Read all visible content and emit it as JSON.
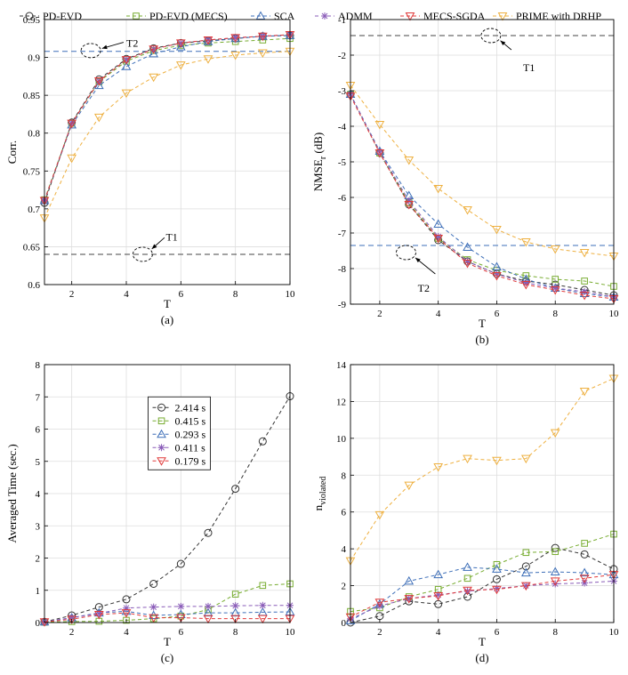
{
  "legend": {
    "entries": [
      {
        "name": "PD-EVD",
        "color": "#333333",
        "marker": "circle"
      },
      {
        "name": "PD-EVD (MECS)",
        "color": "#77ac30",
        "marker": "square"
      },
      {
        "name": "SCA",
        "color": "#3e6fb8",
        "marker": "triangle-up"
      },
      {
        "name": "ADMM",
        "color": "#8a5cb8",
        "marker": "star"
      },
      {
        "name": "MECS-SGDA",
        "color": "#e03a3a",
        "marker": "triangle-down"
      },
      {
        "name": "PRIME with DRHP",
        "color": "#eeb040",
        "marker": "triangle-down"
      }
    ]
  },
  "chart_data": [
    {
      "id": "a",
      "type": "line",
      "caption": "(a)",
      "xlabel": "T",
      "ylabel": "Corr.",
      "xlim": [
        1,
        10
      ],
      "ylim": [
        0.6,
        0.95
      ],
      "xticks": [
        2,
        4,
        6,
        8,
        10
      ],
      "yticks": [
        0.6,
        0.65,
        0.7,
        0.75,
        0.8,
        0.85,
        0.9,
        0.95
      ],
      "ytick_labels": [
        "0.6",
        "0.65",
        "0.7",
        "0.75",
        "0.8",
        "0.85",
        "0.9",
        "0.95"
      ],
      "x": [
        1,
        2,
        3,
        4,
        5,
        6,
        7,
        8,
        9,
        10
      ],
      "series": [
        {
          "name": "PD-EVD",
          "values": [
            0.708,
            0.814,
            0.871,
            0.898,
            0.912,
            0.919,
            0.922,
            0.925,
            0.928,
            0.929
          ]
        },
        {
          "name": "PD-EVD (MECS)",
          "values": [
            0.712,
            0.813,
            0.868,
            0.895,
            0.909,
            0.916,
            0.919,
            0.921,
            0.923,
            0.925
          ]
        },
        {
          "name": "SCA",
          "values": [
            0.711,
            0.811,
            0.863,
            0.888,
            0.905,
            0.914,
            0.921,
            0.925,
            0.928,
            0.929
          ]
        },
        {
          "name": "ADMM",
          "values": [
            0.711,
            0.813,
            0.869,
            0.897,
            0.911,
            0.919,
            0.923,
            0.926,
            0.928,
            0.93
          ]
        },
        {
          "name": "MECS-SGDA",
          "values": [
            0.711,
            0.813,
            0.869,
            0.897,
            0.911,
            0.919,
            0.923,
            0.926,
            0.928,
            0.93
          ]
        },
        {
          "name": "PRIME with DRHP",
          "values": [
            0.688,
            0.767,
            0.821,
            0.853,
            0.874,
            0.89,
            0.898,
            0.903,
            0.906,
            0.908
          ]
        }
      ],
      "hlines": [
        {
          "label": "T1",
          "value": 0.64,
          "color": "#444444"
        },
        {
          "label": "T2",
          "value": 0.908,
          "color": "#3e6fb8"
        }
      ],
      "annotations": [
        {
          "text": "T2",
          "ellipse": [
            2.7,
            0.909
          ],
          "arrow_from": [
            3.9,
            0.92
          ],
          "text_at": [
            4.0,
            0.919
          ]
        },
        {
          "text": "T1",
          "ellipse": [
            4.6,
            0.64
          ],
          "arrow_from": [
            5.4,
            0.662
          ],
          "text_at": [
            5.45,
            0.663
          ]
        }
      ]
    },
    {
      "id": "b",
      "type": "line",
      "caption": "(b)",
      "xlabel": "T",
      "ylabel": "NMSE_r (dB)",
      "ylabel_main": "NMSE",
      "ylabel_sub": "r",
      "ylabel_tail": " (dB)",
      "xlim": [
        1,
        10
      ],
      "ylim": [
        -9,
        -1
      ],
      "xticks": [
        2,
        4,
        6,
        8,
        10
      ],
      "yticks": [
        -9,
        -8,
        -7,
        -6,
        -5,
        -4,
        -3,
        -2,
        -1
      ],
      "ytick_labels": [
        "-9",
        "-8",
        "-7",
        "-6",
        "-5",
        "-4",
        "-3",
        "-2",
        "-1"
      ],
      "x": [
        1,
        2,
        3,
        4,
        5,
        6,
        7,
        8,
        9,
        10
      ],
      "series": [
        {
          "name": "PD-EVD",
          "values": [
            -3.1,
            -4.75,
            -6.2,
            -7.2,
            -7.8,
            -8.15,
            -8.35,
            -8.45,
            -8.6,
            -8.75
          ]
        },
        {
          "name": "PD-EVD (MECS)",
          "values": [
            -3.1,
            -4.75,
            -6.15,
            -7.15,
            -7.75,
            -8.05,
            -8.2,
            -8.3,
            -8.35,
            -8.5
          ]
        },
        {
          "name": "SCA",
          "values": [
            -3.1,
            -4.7,
            -5.95,
            -6.75,
            -7.4,
            -7.95,
            -8.3,
            -8.55,
            -8.7,
            -8.8
          ]
        },
        {
          "name": "ADMM",
          "values": [
            -3.1,
            -4.72,
            -6.1,
            -7.1,
            -7.8,
            -8.15,
            -8.4,
            -8.55,
            -8.65,
            -8.8
          ]
        },
        {
          "name": "MECS-SGDA",
          "values": [
            -3.15,
            -4.75,
            -6.2,
            -7.15,
            -7.85,
            -8.2,
            -8.45,
            -8.6,
            -8.75,
            -8.85
          ]
        },
        {
          "name": "PRIME with DRHP",
          "values": [
            -2.85,
            -3.95,
            -4.95,
            -5.75,
            -6.35,
            -6.9,
            -7.25,
            -7.45,
            -7.55,
            -7.65
          ]
        }
      ],
      "hlines": [
        {
          "label": "T1",
          "value": -1.45,
          "color": "#444444"
        },
        {
          "label": "T2",
          "value": -7.35,
          "color": "#3e6fb8"
        }
      ],
      "annotations": [
        {
          "text": "T1",
          "ellipse": [
            5.8,
            -1.45
          ],
          "arrow_from": [
            6.5,
            -1.85
          ],
          "text_at": [
            6.9,
            -2.35
          ]
        },
        {
          "text": "T2",
          "ellipse": [
            2.9,
            -7.55
          ],
          "arrow_from": [
            3.9,
            -8.15
          ],
          "text_at": [
            3.3,
            -8.55
          ]
        }
      ]
    },
    {
      "id": "c",
      "type": "line",
      "caption": "(c)",
      "xlabel": "T",
      "ylabel": "Averaged Time (sec.)",
      "xlim": [
        1,
        10
      ],
      "ylim": [
        0,
        8
      ],
      "xticks": [
        2,
        4,
        6,
        8,
        10
      ],
      "yticks": [
        0,
        1,
        2,
        3,
        4,
        5,
        6,
        7,
        8
      ],
      "ytick_labels": [
        "0",
        "1",
        "2",
        "3",
        "4",
        "5",
        "6",
        "7",
        "8"
      ],
      "x": [
        1,
        2,
        3,
        4,
        5,
        6,
        7,
        8,
        9,
        10
      ],
      "series": [
        {
          "name": "PD-EVD",
          "values": [
            0.02,
            0.22,
            0.48,
            0.72,
            1.2,
            1.82,
            2.78,
            4.15,
            5.62,
            7.02
          ]
        },
        {
          "name": "PD-EVD (MECS)",
          "values": [
            0.01,
            0.03,
            0.04,
            0.07,
            0.12,
            0.2,
            0.4,
            0.88,
            1.15,
            1.2
          ]
        },
        {
          "name": "SCA",
          "values": [
            0.02,
            0.15,
            0.3,
            0.35,
            0.22,
            0.25,
            0.3,
            0.3,
            0.32,
            0.33
          ]
        },
        {
          "name": "ADMM",
          "values": [
            0.02,
            0.15,
            0.28,
            0.45,
            0.48,
            0.5,
            0.5,
            0.52,
            0.53,
            0.53
          ]
        },
        {
          "name": "MECS-SGDA",
          "values": [
            0.02,
            0.1,
            0.25,
            0.3,
            0.15,
            0.15,
            0.12,
            0.12,
            0.12,
            0.12
          ]
        }
      ],
      "legend_entries": [
        {
          "series": "PD-EVD",
          "label": "2.414 s"
        },
        {
          "series": "PD-EVD (MECS)",
          "label": "0.415 s"
        },
        {
          "series": "SCA",
          "label": "0.293 s"
        },
        {
          "series": "ADMM",
          "label": "0.411 s"
        },
        {
          "series": "MECS-SGDA",
          "label": "0.179 s"
        }
      ],
      "legend_position": "upper-left inside"
    },
    {
      "id": "d",
      "type": "line",
      "caption": "(d)",
      "xlabel": "T",
      "ylabel": "n_violated",
      "ylabel_main": "n",
      "ylabel_sub": "violated",
      "ylabel_tail": "",
      "xlim": [
        1,
        10
      ],
      "ylim": [
        0,
        14
      ],
      "xticks": [
        2,
        4,
        6,
        8,
        10
      ],
      "yticks": [
        0,
        2,
        4,
        6,
        8,
        10,
        12,
        14
      ],
      "ytick_labels": [
        "0",
        "2",
        "4",
        "6",
        "8",
        "10",
        "12",
        "14"
      ],
      "x": [
        1,
        2,
        3,
        4,
        5,
        6,
        7,
        8,
        9,
        10
      ],
      "series": [
        {
          "name": "PD-EVD",
          "values": [
            0.0,
            0.35,
            1.15,
            1.0,
            1.4,
            2.35,
            3.05,
            4.05,
            3.7,
            2.9
          ]
        },
        {
          "name": "PD-EVD (MECS)",
          "values": [
            0.6,
            0.8,
            1.4,
            1.8,
            2.4,
            3.15,
            3.8,
            3.85,
            4.3,
            4.8
          ]
        },
        {
          "name": "SCA",
          "values": [
            0.1,
            1.0,
            2.25,
            2.6,
            3.0,
            2.9,
            2.7,
            2.75,
            2.7,
            2.6
          ]
        },
        {
          "name": "ADMM",
          "values": [
            0.2,
            0.9,
            1.3,
            1.5,
            1.7,
            1.85,
            2.0,
            2.1,
            2.15,
            2.25
          ]
        },
        {
          "name": "MECS-SGDA",
          "values": [
            0.3,
            1.1,
            1.3,
            1.45,
            1.75,
            1.8,
            2.0,
            2.25,
            2.4,
            2.6
          ]
        },
        {
          "name": "PRIME with DRHP",
          "values": [
            3.35,
            5.85,
            7.45,
            8.45,
            8.9,
            8.8,
            8.9,
            10.3,
            12.55,
            13.25
          ]
        }
      ]
    }
  ]
}
